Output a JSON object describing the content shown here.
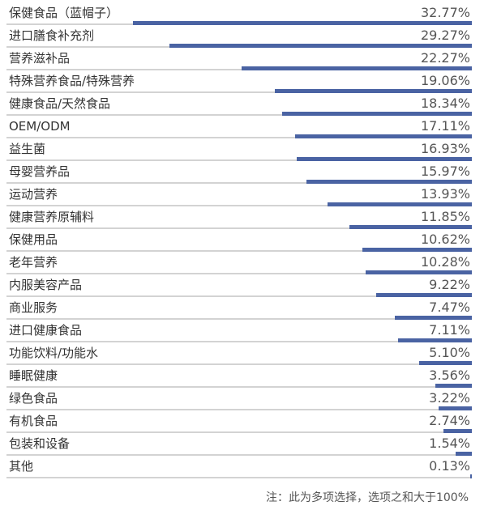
{
  "chart_data": {
    "type": "bar",
    "orientation": "horizontal",
    "categories": [
      "保健食品（蓝帽子）",
      "进口膳食补充剂",
      "营养滋补品",
      "特殊营养食品/特殊营养",
      "健康食品/天然食品",
      "OEM/ODM",
      "益生菌",
      "母婴营养品",
      "运动营养",
      "健康营养原辅料",
      "保健用品",
      "老年营养",
      "内服美容产品",
      "商业服务",
      "进口健康食品",
      "功能饮料/功能水",
      "睡眠健康",
      "绿色食品",
      "有机食品",
      "包装和设备",
      "其他"
    ],
    "values": [
      32.77,
      29.27,
      22.27,
      19.06,
      18.34,
      17.11,
      16.93,
      15.97,
      13.93,
      11.85,
      10.62,
      10.28,
      9.22,
      7.47,
      7.11,
      5.1,
      3.56,
      3.22,
      2.74,
      1.54,
      0.13
    ],
    "value_labels": [
      "32.77%",
      "29.27%",
      "22.27%",
      "19.06%",
      "18.34%",
      "17.11%",
      "16.93%",
      "15.97%",
      "13.93%",
      "11.85%",
      "10.62%",
      "10.28%",
      "9.22%",
      "7.47%",
      "7.11%",
      "5.10%",
      "3.56%",
      "3.22%",
      "2.74%",
      "1.54%",
      "0.13%"
    ],
    "bar_alignment": "right",
    "xlim": [
      0,
      45
    ],
    "grid": false,
    "legend": "none",
    "bar_color": "#4a63a3",
    "track_color": "#d3d3d3",
    "note": "注：此为多项选择，选项之和大于100%"
  }
}
